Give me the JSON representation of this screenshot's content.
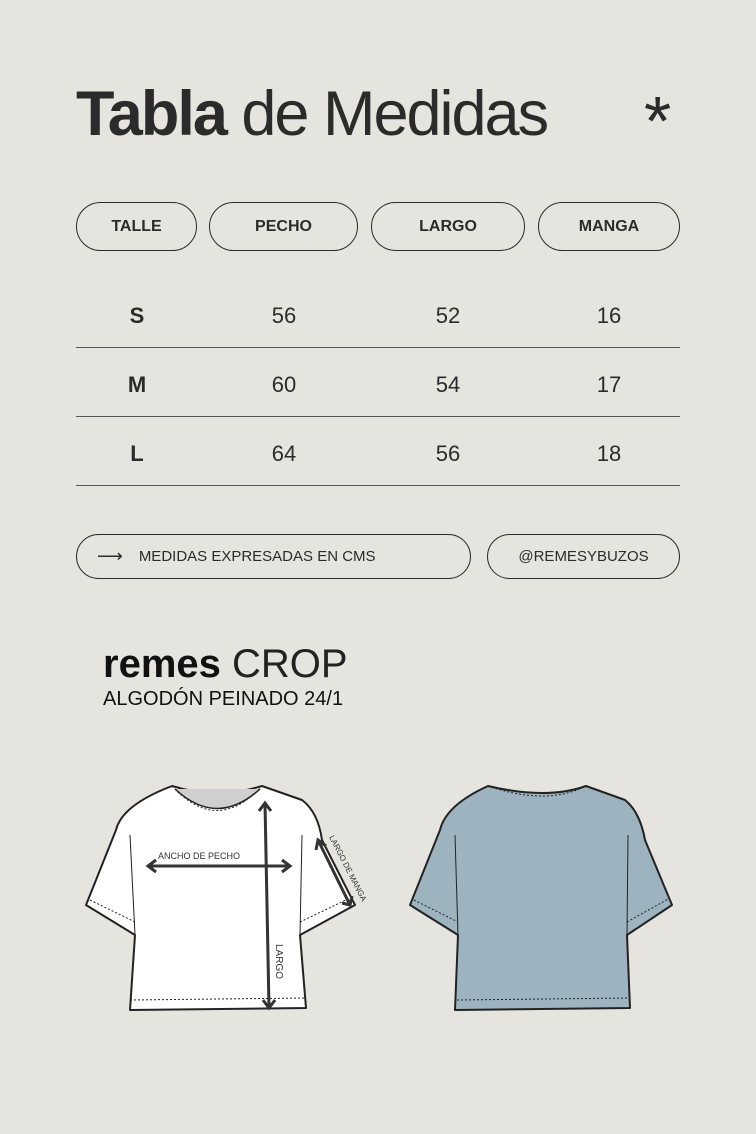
{
  "title": {
    "bold": "Tabla",
    "light": "de Medidas",
    "icon": "asterisk-icon"
  },
  "headers": [
    "TALLE",
    "PECHO",
    "LARGO",
    "MANGA"
  ],
  "rows": [
    {
      "talle": "S",
      "pecho": "56",
      "largo": "52",
      "manga": "16"
    },
    {
      "talle": "M",
      "pecho": "60",
      "largo": "54",
      "manga": "17"
    },
    {
      "talle": "L",
      "pecho": "64",
      "largo": "56",
      "manga": "18"
    }
  ],
  "footer": {
    "note": "MEDIDAS EXPRESADAS EN CMS",
    "note_icon": "arrow-right-icon",
    "handle": "@REMESYBUZOS"
  },
  "product": {
    "brand": "remes",
    "model": "CROP",
    "fabric": "ALGODÓN PEINADO  24/1"
  },
  "diagram": {
    "chest": "ANCHO DE PECHO",
    "length": "LARGO",
    "sleeve": "LARGO DE MANGA",
    "back_color": "#9db3bf"
  }
}
